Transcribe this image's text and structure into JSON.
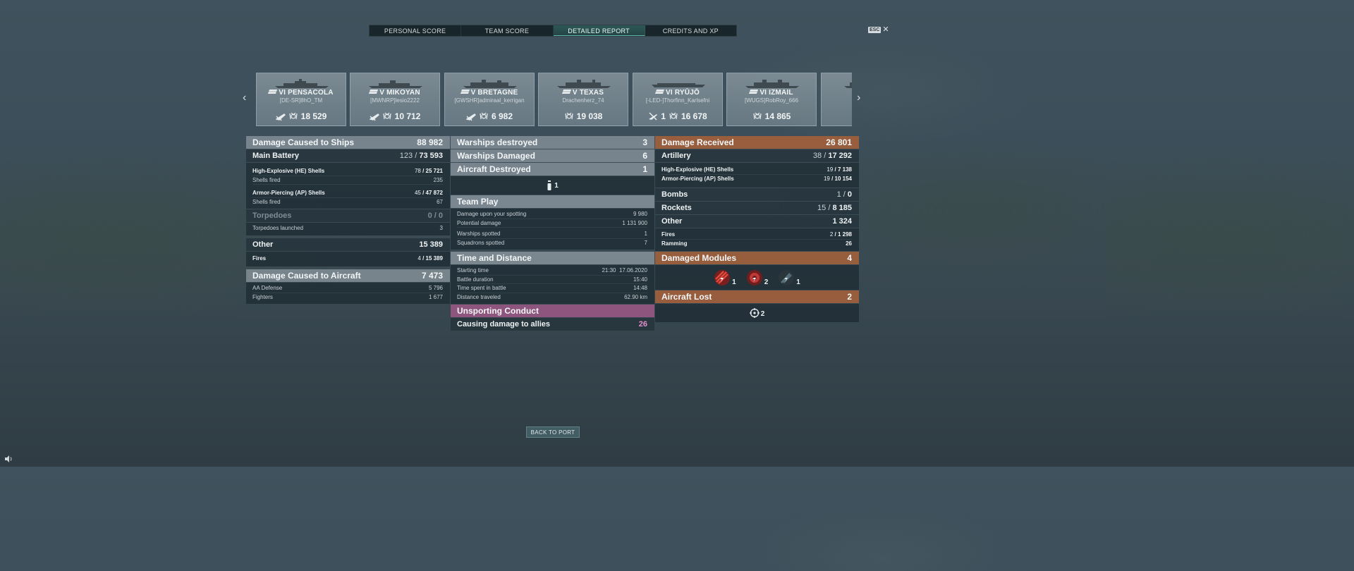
{
  "tabs": [
    {
      "label": "PERSONAL SCORE",
      "active": false
    },
    {
      "label": "TEAM SCORE",
      "active": false
    },
    {
      "label": "DETAILED REPORT",
      "active": true
    },
    {
      "label": "CREDITS AND XP",
      "active": false
    }
  ],
  "esc": {
    "key": "ESC",
    "close": "✕"
  },
  "carousel": {
    "prev": "‹",
    "next": "›",
    "ships": [
      {
        "name": "VI PENSACOLA",
        "player": "[DE-SR]8hO_TM",
        "badge_count": "",
        "score": "18 529",
        "badge_icon": "plane-icon"
      },
      {
        "name": "V MIKOYAN",
        "player": "[MWNRP]lesio2222",
        "badge_count": "",
        "score": "10 712",
        "badge_icon": "plane-icon"
      },
      {
        "name": "V BRETAGNE",
        "player": "[GWSHR]admiraal_kerrigan",
        "badge_count": "",
        "score": "6 982",
        "badge_icon": "plane-icon"
      },
      {
        "name": "V TEXAS",
        "player": "Drachenherz_74",
        "badge_count": "",
        "score": "19 038",
        "badge_icon": ""
      },
      {
        "name": "VI RYŪJŌ",
        "player": "[-LED-]Thorfinn_Karlsefni",
        "badge_count": "1",
        "score": "16 678",
        "badge_icon": "plane-icon"
      },
      {
        "name": "VI IZMAIL",
        "player": "[WUGS]RobRoy_666",
        "badge_count": "",
        "score": "14 865",
        "badge_icon": ""
      },
      {
        "name": "",
        "player": "",
        "badge_count": "",
        "score": "",
        "badge_icon": ""
      }
    ]
  },
  "left": {
    "damage_ships": {
      "label": "Damage Caused to Ships",
      "value": "88 982"
    },
    "main_battery": {
      "label": "Main Battery",
      "hits": "123",
      "sep": "/",
      "value": "73 593"
    },
    "he_label": "High-Explosive (HE) Shells",
    "he_hits": "78",
    "he_value": "25 721",
    "he_fired_label": "Shells fired",
    "he_fired": "235",
    "ap_label": "Armor-Piercing (AP) Shells",
    "ap_hits": "45",
    "ap_value": "47 872",
    "ap_fired_label": "Shells fired",
    "ap_fired": "67",
    "torpedoes": {
      "label": "Torpedoes",
      "hits": "0",
      "sep": "/",
      "value": "0"
    },
    "torp_launched_label": "Torpedoes launched",
    "torp_launched": "3",
    "other": {
      "label": "Other",
      "value": "15 389"
    },
    "fires_label": "Fires",
    "fires_hits": "4",
    "fires_value": "15 389",
    "damage_aircraft": {
      "label": "Damage Caused to Aircraft",
      "value": "7 473"
    },
    "aa_label": "AA Defense",
    "aa_value": "5 796",
    "fighters_label": "Fighters",
    "fighters_value": "1 677"
  },
  "middle": {
    "warships_destroyed": {
      "label": "Warships destroyed",
      "value": "3"
    },
    "warships_damaged": {
      "label": "Warships Damaged",
      "value": "6"
    },
    "aircraft_destroyed": {
      "label": "Aircraft Destroyed",
      "value": "1"
    },
    "aircraft_icon_count": "1",
    "team_play": {
      "label": "Team Play"
    },
    "spotting_dmg_label": "Damage upon your spotting",
    "spotting_dmg": "9 980",
    "potential_label": "Potential damage",
    "potential": "1 131 900",
    "ws_spotted_label": "Warships spotted",
    "ws_spotted": "1",
    "sq_spotted_label": "Squadrons spotted",
    "sq_spotted": "7",
    "time_distance": {
      "label": "Time and Distance"
    },
    "start_label": "Starting time",
    "start_time": "21:30",
    "start_date": "17.06.2020",
    "duration_label": "Battle duration",
    "duration": "15:40",
    "in_battle_label": "Time spent in battle",
    "in_battle": "14:48",
    "distance_label": "Distance traveled",
    "distance": "62.90 km",
    "unsporting": {
      "label": "Unsporting Conduct"
    },
    "allies_label": "Causing damage to allies",
    "allies_value": "26"
  },
  "right": {
    "damage_received": {
      "label": "Damage Received",
      "value": "26 801"
    },
    "artillery": {
      "label": "Artillery",
      "hits": "38",
      "sep": "/",
      "value": "17 292"
    },
    "he_label": "High-Explosive (HE) Shells",
    "he_hits": "19",
    "he_value": "7 138",
    "ap_label": "Armor-Piercing (AP) Shells",
    "ap_hits": "19",
    "ap_value": "10 154",
    "bombs": {
      "label": "Bombs",
      "hits": "1",
      "sep": "/",
      "value": "0"
    },
    "rockets": {
      "label": "Rockets",
      "hits": "15",
      "sep": "/",
      "value": "8 185"
    },
    "other": {
      "label": "Other",
      "value": "1 324"
    },
    "fires_label": "Fires",
    "fires_hits": "2",
    "fires_value": "1 298",
    "ramming_label": "Ramming",
    "ramming_value": "26",
    "damaged_modules": {
      "label": "Damaged Modules",
      "value": "4"
    },
    "modules": [
      {
        "icon": "main-battery-module-icon",
        "count": "1",
        "color": "#c0392b"
      },
      {
        "icon": "engine-module-icon",
        "count": "2",
        "color": "#b03a3a"
      },
      {
        "icon": "aa-module-icon",
        "count": "1",
        "color": "#3f5158"
      }
    ],
    "aircraft_lost": {
      "label": "Aircraft Lost",
      "value": "2"
    },
    "aircraft_lost_icon_count": "2"
  },
  "back_button": "BACK TO PORT",
  "colors": {
    "active_tab": "#2e5656",
    "orange_header": "#a0603c",
    "pink_header": "#965882",
    "pink_value": "#e58fcf"
  }
}
